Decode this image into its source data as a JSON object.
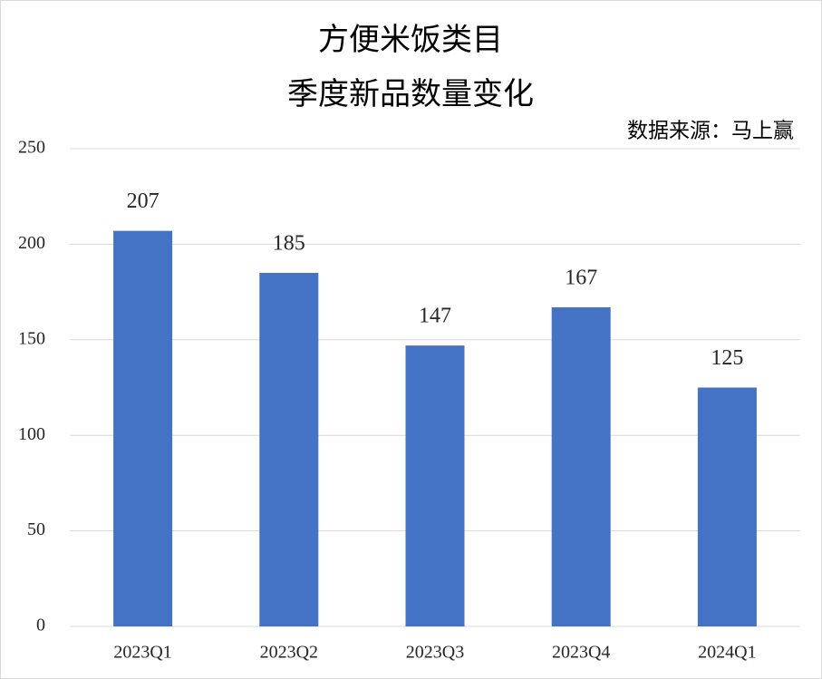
{
  "chart_data": {
    "type": "bar",
    "title": "方便米饭类目",
    "subtitle": "季度新品数量变化",
    "annotation": "数据来源：马上赢",
    "categories": [
      "2023Q1",
      "2023Q2",
      "2023Q3",
      "2023Q4",
      "2024Q1"
    ],
    "values": [
      207,
      185,
      147,
      167,
      125
    ],
    "color": "#4472c4",
    "ylim": [
      0,
      250
    ],
    "yticks": [
      0,
      50,
      100,
      150,
      200,
      250
    ],
    "grid": true
  }
}
